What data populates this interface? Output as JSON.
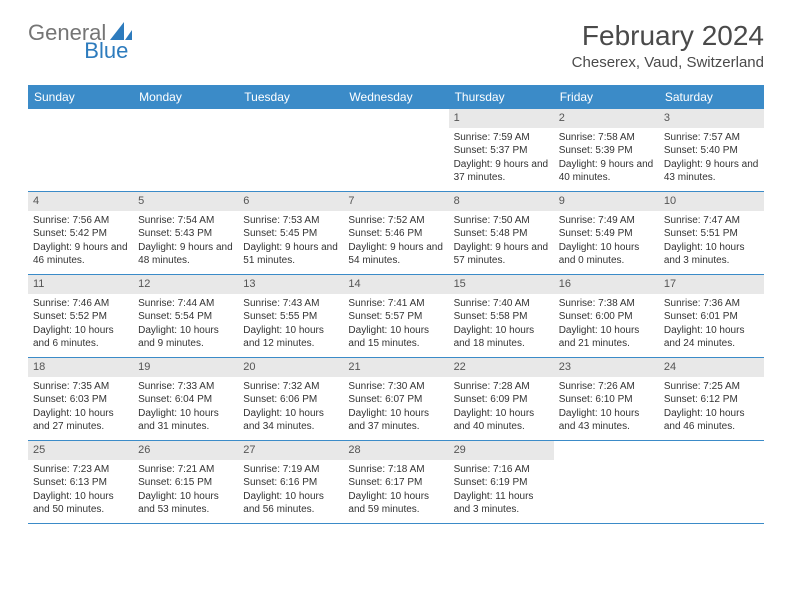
{
  "logo": {
    "text1": "General",
    "text2": "Blue",
    "text1_color": "#757575",
    "text2_color": "#2d7bbd",
    "icon_color": "#2d7bbd"
  },
  "title": "February 2024",
  "location": "Cheserex, Vaud, Switzerland",
  "colors": {
    "header_bg": "#3b8bc8",
    "header_text": "#ffffff",
    "daynum_bg": "#e8e8e8",
    "border": "#3b8bc8"
  },
  "day_headers": [
    "Sunday",
    "Monday",
    "Tuesday",
    "Wednesday",
    "Thursday",
    "Friday",
    "Saturday"
  ],
  "weeks": [
    [
      null,
      null,
      null,
      null,
      {
        "n": "1",
        "sunrise": "Sunrise: 7:59 AM",
        "sunset": "Sunset: 5:37 PM",
        "daylight": "Daylight: 9 hours and 37 minutes."
      },
      {
        "n": "2",
        "sunrise": "Sunrise: 7:58 AM",
        "sunset": "Sunset: 5:39 PM",
        "daylight": "Daylight: 9 hours and 40 minutes."
      },
      {
        "n": "3",
        "sunrise": "Sunrise: 7:57 AM",
        "sunset": "Sunset: 5:40 PM",
        "daylight": "Daylight: 9 hours and 43 minutes."
      }
    ],
    [
      {
        "n": "4",
        "sunrise": "Sunrise: 7:56 AM",
        "sunset": "Sunset: 5:42 PM",
        "daylight": "Daylight: 9 hours and 46 minutes."
      },
      {
        "n": "5",
        "sunrise": "Sunrise: 7:54 AM",
        "sunset": "Sunset: 5:43 PM",
        "daylight": "Daylight: 9 hours and 48 minutes."
      },
      {
        "n": "6",
        "sunrise": "Sunrise: 7:53 AM",
        "sunset": "Sunset: 5:45 PM",
        "daylight": "Daylight: 9 hours and 51 minutes."
      },
      {
        "n": "7",
        "sunrise": "Sunrise: 7:52 AM",
        "sunset": "Sunset: 5:46 PM",
        "daylight": "Daylight: 9 hours and 54 minutes."
      },
      {
        "n": "8",
        "sunrise": "Sunrise: 7:50 AM",
        "sunset": "Sunset: 5:48 PM",
        "daylight": "Daylight: 9 hours and 57 minutes."
      },
      {
        "n": "9",
        "sunrise": "Sunrise: 7:49 AM",
        "sunset": "Sunset: 5:49 PM",
        "daylight": "Daylight: 10 hours and 0 minutes."
      },
      {
        "n": "10",
        "sunrise": "Sunrise: 7:47 AM",
        "sunset": "Sunset: 5:51 PM",
        "daylight": "Daylight: 10 hours and 3 minutes."
      }
    ],
    [
      {
        "n": "11",
        "sunrise": "Sunrise: 7:46 AM",
        "sunset": "Sunset: 5:52 PM",
        "daylight": "Daylight: 10 hours and 6 minutes."
      },
      {
        "n": "12",
        "sunrise": "Sunrise: 7:44 AM",
        "sunset": "Sunset: 5:54 PM",
        "daylight": "Daylight: 10 hours and 9 minutes."
      },
      {
        "n": "13",
        "sunrise": "Sunrise: 7:43 AM",
        "sunset": "Sunset: 5:55 PM",
        "daylight": "Daylight: 10 hours and 12 minutes."
      },
      {
        "n": "14",
        "sunrise": "Sunrise: 7:41 AM",
        "sunset": "Sunset: 5:57 PM",
        "daylight": "Daylight: 10 hours and 15 minutes."
      },
      {
        "n": "15",
        "sunrise": "Sunrise: 7:40 AM",
        "sunset": "Sunset: 5:58 PM",
        "daylight": "Daylight: 10 hours and 18 minutes."
      },
      {
        "n": "16",
        "sunrise": "Sunrise: 7:38 AM",
        "sunset": "Sunset: 6:00 PM",
        "daylight": "Daylight: 10 hours and 21 minutes."
      },
      {
        "n": "17",
        "sunrise": "Sunrise: 7:36 AM",
        "sunset": "Sunset: 6:01 PM",
        "daylight": "Daylight: 10 hours and 24 minutes."
      }
    ],
    [
      {
        "n": "18",
        "sunrise": "Sunrise: 7:35 AM",
        "sunset": "Sunset: 6:03 PM",
        "daylight": "Daylight: 10 hours and 27 minutes."
      },
      {
        "n": "19",
        "sunrise": "Sunrise: 7:33 AM",
        "sunset": "Sunset: 6:04 PM",
        "daylight": "Daylight: 10 hours and 31 minutes."
      },
      {
        "n": "20",
        "sunrise": "Sunrise: 7:32 AM",
        "sunset": "Sunset: 6:06 PM",
        "daylight": "Daylight: 10 hours and 34 minutes."
      },
      {
        "n": "21",
        "sunrise": "Sunrise: 7:30 AM",
        "sunset": "Sunset: 6:07 PM",
        "daylight": "Daylight: 10 hours and 37 minutes."
      },
      {
        "n": "22",
        "sunrise": "Sunrise: 7:28 AM",
        "sunset": "Sunset: 6:09 PM",
        "daylight": "Daylight: 10 hours and 40 minutes."
      },
      {
        "n": "23",
        "sunrise": "Sunrise: 7:26 AM",
        "sunset": "Sunset: 6:10 PM",
        "daylight": "Daylight: 10 hours and 43 minutes."
      },
      {
        "n": "24",
        "sunrise": "Sunrise: 7:25 AM",
        "sunset": "Sunset: 6:12 PM",
        "daylight": "Daylight: 10 hours and 46 minutes."
      }
    ],
    [
      {
        "n": "25",
        "sunrise": "Sunrise: 7:23 AM",
        "sunset": "Sunset: 6:13 PM",
        "daylight": "Daylight: 10 hours and 50 minutes."
      },
      {
        "n": "26",
        "sunrise": "Sunrise: 7:21 AM",
        "sunset": "Sunset: 6:15 PM",
        "daylight": "Daylight: 10 hours and 53 minutes."
      },
      {
        "n": "27",
        "sunrise": "Sunrise: 7:19 AM",
        "sunset": "Sunset: 6:16 PM",
        "daylight": "Daylight: 10 hours and 56 minutes."
      },
      {
        "n": "28",
        "sunrise": "Sunrise: 7:18 AM",
        "sunset": "Sunset: 6:17 PM",
        "daylight": "Daylight: 10 hours and 59 minutes."
      },
      {
        "n": "29",
        "sunrise": "Sunrise: 7:16 AM",
        "sunset": "Sunset: 6:19 PM",
        "daylight": "Daylight: 11 hours and 3 minutes."
      },
      null,
      null
    ]
  ]
}
